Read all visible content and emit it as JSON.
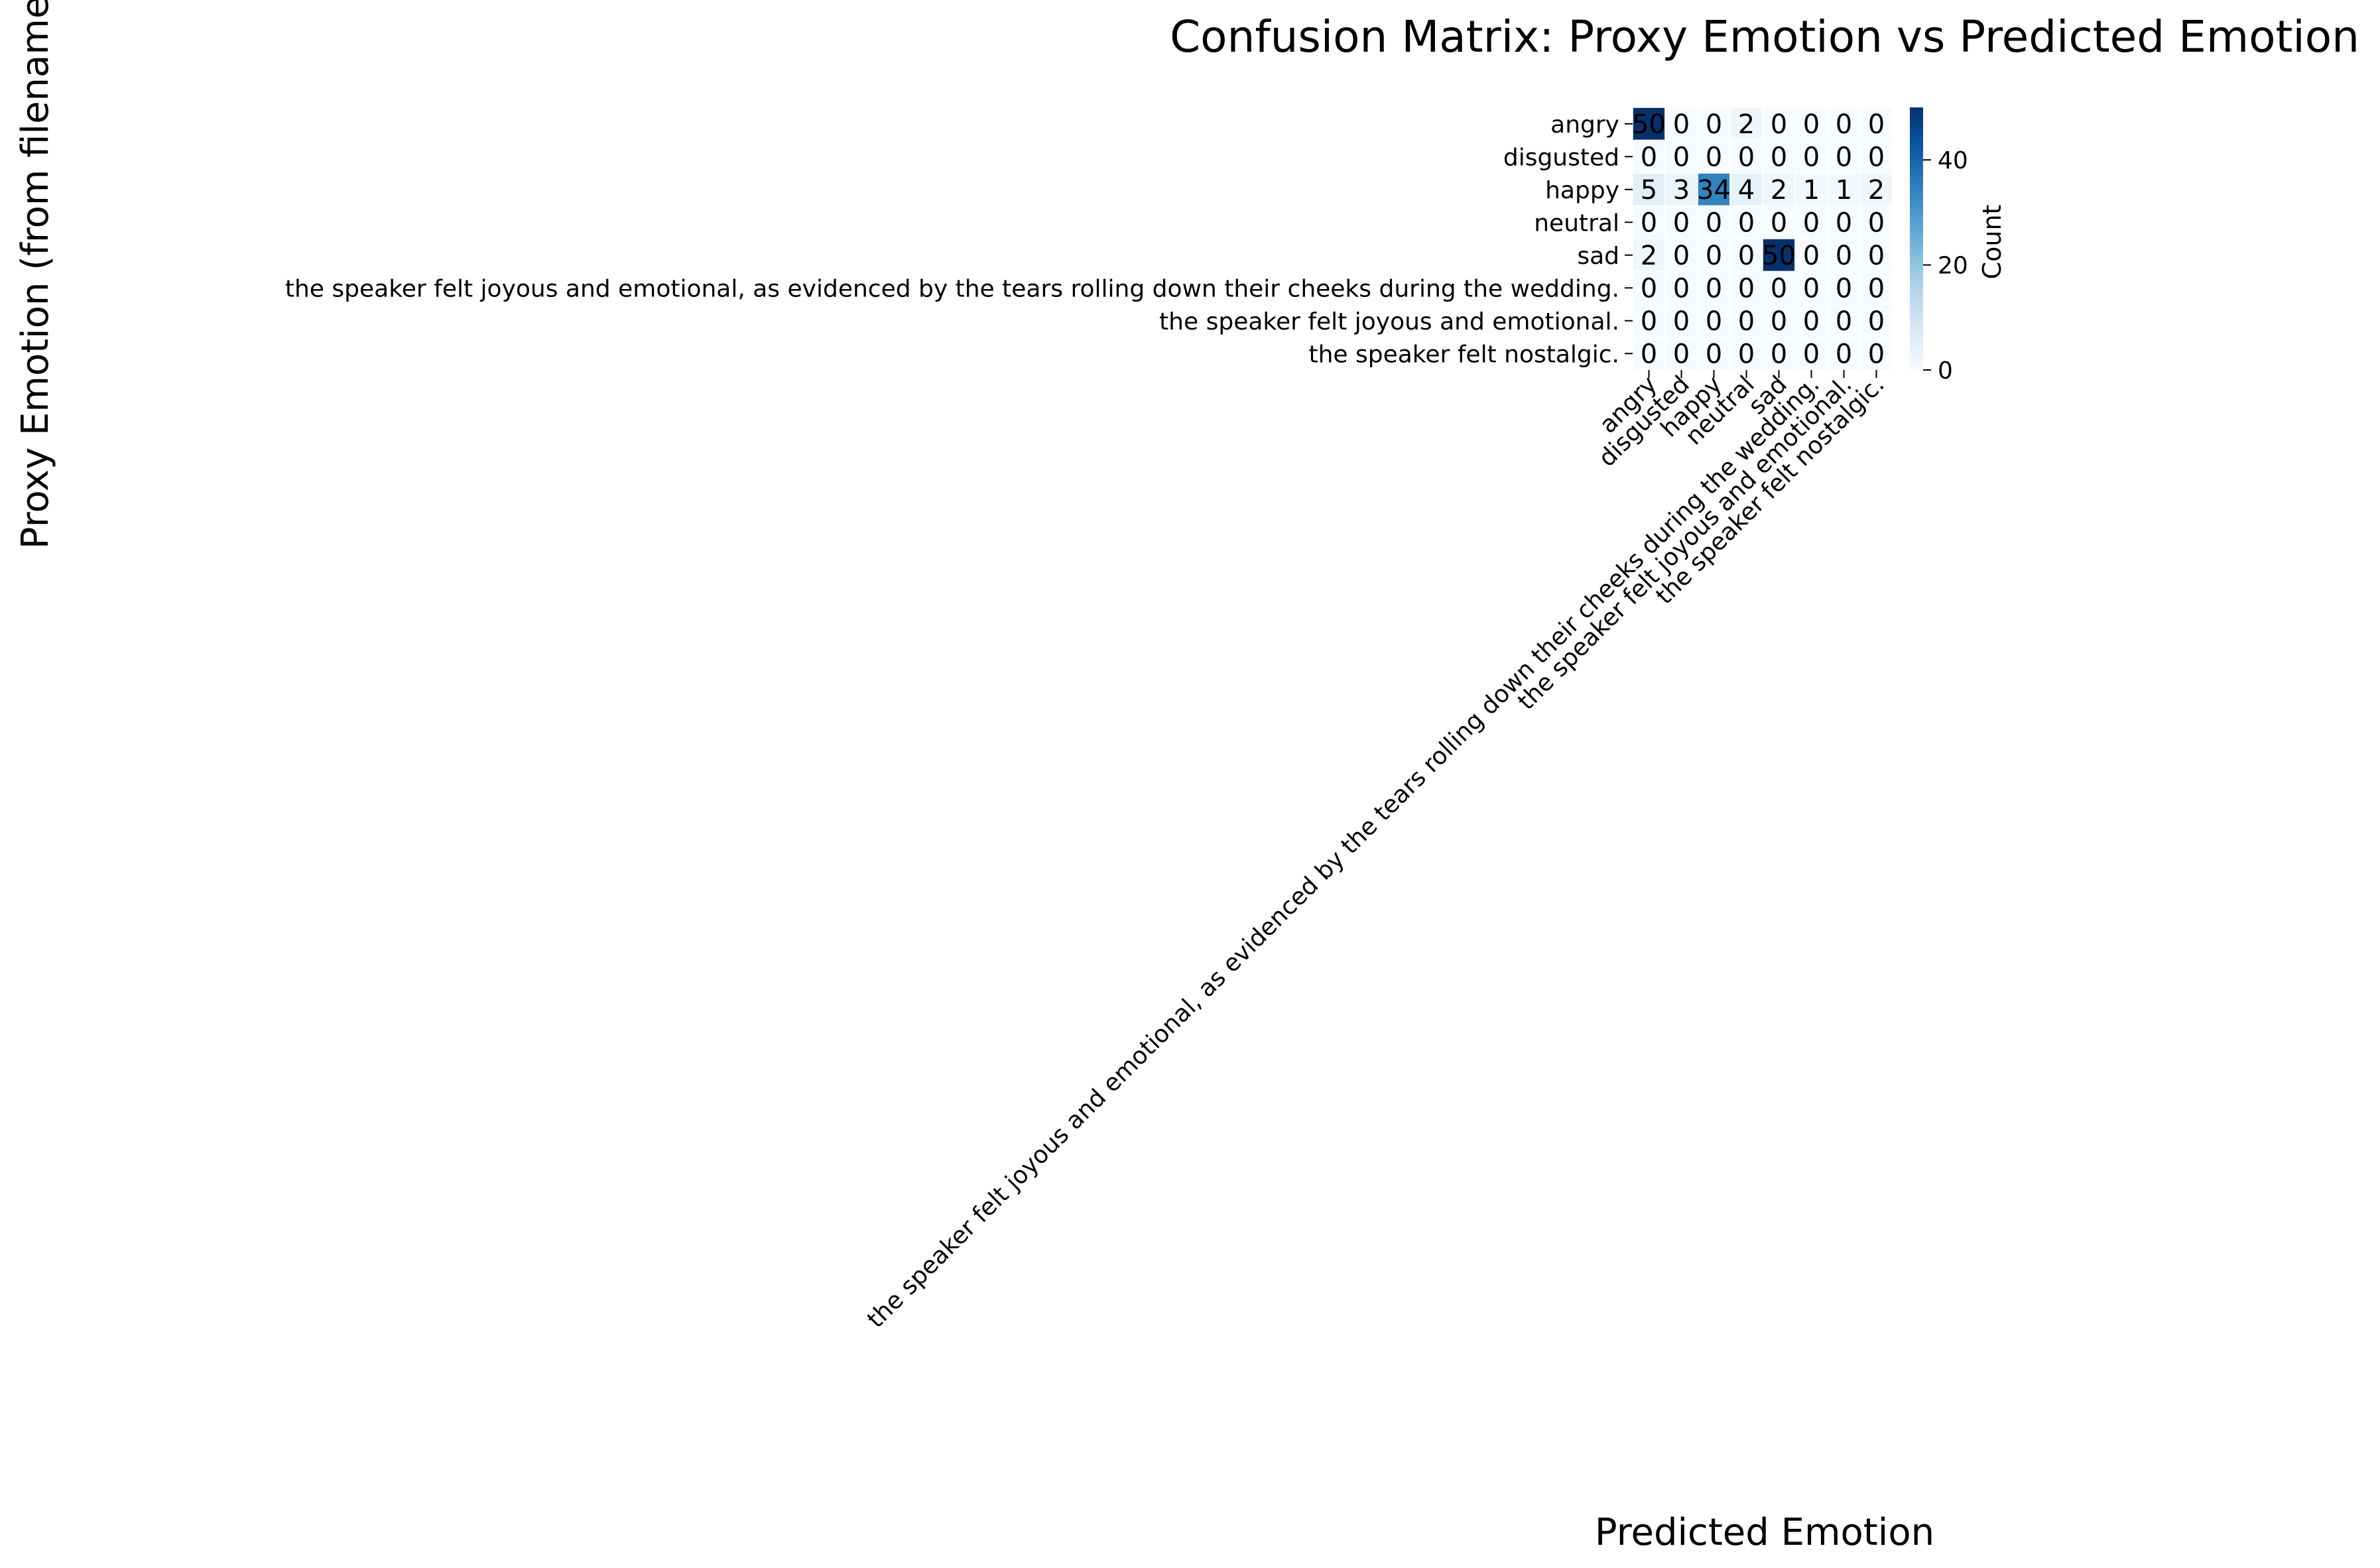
{
  "chart_data": {
    "type": "heatmap",
    "title": "Confusion Matrix: Proxy Emotion vs Predicted Emotion",
    "xlabel": "Predicted Emotion",
    "ylabel": "Proxy Emotion (from filename)",
    "row_labels": [
      "angry",
      "disgusted",
      "happy",
      "neutral",
      "sad",
      "the speaker felt joyous and emotional, as evidenced by the tears rolling down their cheeks during the wedding.",
      "the speaker felt joyous and emotional.",
      "the speaker felt nostalgic."
    ],
    "col_labels": [
      "angry",
      "disgusted",
      "happy",
      "neutral",
      "sad",
      "the speaker felt joyous and emotional, as evidenced by the tears rolling down their cheeks during the wedding.",
      "the speaker felt joyous and emotional.",
      "the speaker felt nostalgic."
    ],
    "values": [
      [
        50,
        0,
        0,
        2,
        0,
        0,
        0,
        0
      ],
      [
        0,
        0,
        0,
        0,
        0,
        0,
        0,
        0
      ],
      [
        5,
        3,
        34,
        4,
        2,
        1,
        1,
        2
      ],
      [
        0,
        0,
        0,
        0,
        0,
        0,
        0,
        0
      ],
      [
        2,
        0,
        0,
        0,
        50,
        0,
        0,
        0
      ],
      [
        0,
        0,
        0,
        0,
        0,
        0,
        0,
        0
      ],
      [
        0,
        0,
        0,
        0,
        0,
        0,
        0,
        0
      ],
      [
        0,
        0,
        0,
        0,
        0,
        0,
        0,
        0
      ]
    ],
    "colormap": "Blues",
    "vmin": 0,
    "vmax": 50,
    "colorbar": {
      "label": "Count",
      "ticks": [
        0,
        20,
        40
      ]
    },
    "annotations": true
  }
}
